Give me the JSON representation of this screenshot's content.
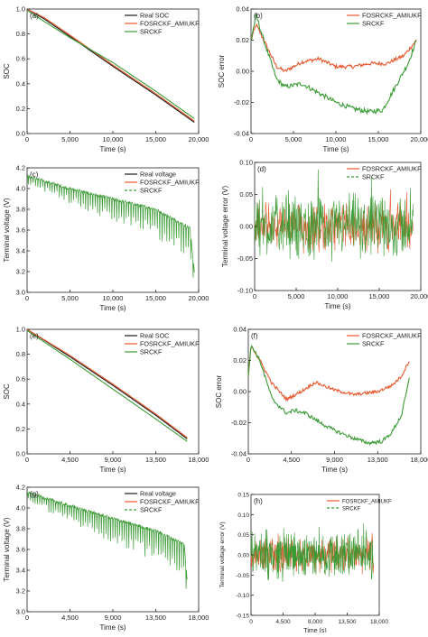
{
  "figure": {
    "colors": {
      "real": "#1a1a1a",
      "fos": "#e8552a",
      "srckf": "#3a9a34",
      "axis": "#222222"
    }
  },
  "chart_data": [
    {
      "id": "a",
      "type": "line",
      "panel_label": "(a)",
      "xlabel": "Time (s)",
      "ylabel": "SOC",
      "xlim": [
        0,
        20000
      ],
      "ylim": [
        0,
        1.0
      ],
      "xticks": [
        0,
        5000,
        10000,
        15000,
        20000
      ],
      "xtick_labels": [
        "0",
        "5,000",
        "10,000",
        "15,000",
        "20,000"
      ],
      "yticks": [
        0.0,
        0.2,
        0.4,
        0.6,
        0.8,
        1.0
      ],
      "ytick_labels": [
        "0.0",
        "0.2",
        "0.4",
        "0.6",
        "0.8",
        "1.0"
      ],
      "legend_position": "top-right",
      "series": [
        {
          "name": "Real SOC",
          "color": "#1a1a1a",
          "style": "solid",
          "x": [
            0,
            2000,
            5000,
            10000,
            15000,
            19500
          ],
          "y": [
            1.0,
            0.92,
            0.78,
            0.54,
            0.31,
            0.09
          ]
        },
        {
          "name": "FOSRCKF_AMIUKF",
          "color": "#e8552a",
          "style": "solid",
          "x": [
            0,
            2000,
            5000,
            10000,
            15000,
            19500
          ],
          "y": [
            1.0,
            0.93,
            0.79,
            0.55,
            0.32,
            0.1
          ]
        },
        {
          "name": "SRCKF",
          "color": "#3a9a34",
          "style": "solid",
          "x": [
            0,
            2000,
            5000,
            10000,
            15000,
            19500
          ],
          "y": [
            0.99,
            0.9,
            0.77,
            0.57,
            0.34,
            0.12
          ]
        }
      ]
    },
    {
      "id": "b",
      "type": "line",
      "panel_label": "(b)",
      "xlabel": "Time (s)",
      "ylabel": "SOC error",
      "xlim": [
        0,
        20000
      ],
      "ylim": [
        -0.04,
        0.04
      ],
      "xticks": [
        0,
        5000,
        10000,
        15000,
        20000
      ],
      "xtick_labels": [
        "0",
        "5,000",
        "10,000",
        "15,000",
        "20,000"
      ],
      "yticks": [
        -0.04,
        -0.02,
        0.0,
        0.02,
        0.04
      ],
      "ytick_labels": [
        "-0.04",
        "-0.02",
        "0.00",
        "0.02",
        "0.04"
      ],
      "legend_position": "top-right",
      "series": [
        {
          "name": "FOSRCKF_AMIUKF",
          "color": "#e8552a",
          "style": "solid",
          "noise": 0.0012,
          "x": [
            0,
            600,
            1500,
            3000,
            4000,
            6000,
            8000,
            10000,
            12000,
            14000,
            16000,
            18000,
            19500
          ],
          "y": [
            0.02,
            0.03,
            0.02,
            0.003,
            0.0,
            0.006,
            0.008,
            0.003,
            0.003,
            0.005,
            0.005,
            0.01,
            0.02
          ]
        },
        {
          "name": "SRCKF",
          "color": "#3a9a34",
          "style": "solid",
          "noise": 0.0015,
          "x": [
            0,
            600,
            1500,
            3000,
            4000,
            6000,
            8000,
            10000,
            12000,
            14000,
            15500,
            17000,
            18500,
            19500
          ],
          "y": [
            0.02,
            0.036,
            0.02,
            -0.005,
            -0.01,
            -0.008,
            -0.014,
            -0.02,
            -0.024,
            -0.026,
            -0.025,
            -0.01,
            0.005,
            0.02
          ]
        }
      ]
    },
    {
      "id": "c",
      "type": "line",
      "panel_label": "(c)",
      "xlabel": "Time (s)",
      "ylabel": "Terminal voltage (V)",
      "xlim": [
        0,
        20000
      ],
      "ylim": [
        3.0,
        4.2
      ],
      "xticks": [
        0,
        5000,
        10000,
        15000,
        20000
      ],
      "xtick_labels": [
        "0",
        "5,000",
        "10,000",
        "15,000",
        "20,000"
      ],
      "yticks": [
        3.0,
        3.2,
        3.4,
        3.6,
        3.8,
        4.0,
        4.2
      ],
      "ytick_labels": [
        "3.0",
        "3.2",
        "3.4",
        "3.6",
        "3.8",
        "4.0",
        "4.2"
      ],
      "legend_position": "top-right",
      "series": [
        {
          "name": "Real voltage",
          "color": "#1a1a1a",
          "style": "solid"
        },
        {
          "name": "FOSRCKF_AMIUKF",
          "color": "#e8552a",
          "style": "solid"
        },
        {
          "name": "SRCKF",
          "color": "#3a9a34",
          "style": "dashed",
          "x": [
            0,
            5000,
            10000,
            15000,
            19000,
            19500
          ],
          "y": [
            4.12,
            4.0,
            3.9,
            3.8,
            3.62,
            3.2
          ],
          "drop": 0.28
        }
      ]
    },
    {
      "id": "d",
      "type": "line",
      "panel_label": "(d)",
      "xlabel": "Time (s)",
      "ylabel": "Terminal voltage error (V)",
      "xlim": [
        0,
        20000
      ],
      "ylim": [
        -0.1,
        0.1
      ],
      "xticks": [
        0,
        5000,
        10000,
        15000,
        20000
      ],
      "xtick_labels": [
        "0",
        "5,000",
        "10,000",
        "15,000",
        "20,000"
      ],
      "yticks": [
        -0.1,
        -0.05,
        0.0,
        0.05,
        0.1
      ],
      "ytick_labels": [
        "-0.10",
        "-0.05",
        "0.00",
        "0.05",
        "0.10"
      ],
      "legend_position": "top-right",
      "series": [
        {
          "name": "FOSRCKF_AMIUKF",
          "color": "#e8552a",
          "style": "solid",
          "amp": 0.045
        },
        {
          "name": "SRCKF",
          "color": "#3a9a34",
          "style": "dashed",
          "amp": 0.06
        }
      ]
    },
    {
      "id": "e",
      "type": "line",
      "panel_label": "(e)",
      "xlabel": "Time (s)",
      "ylabel": "SOC",
      "xlim": [
        0,
        18000
      ],
      "ylim": [
        0,
        1.0
      ],
      "xticks": [
        0,
        4500,
        9000,
        13500,
        18000
      ],
      "xtick_labels": [
        "0",
        "4,500",
        "9,000",
        "13,500",
        "18,000"
      ],
      "yticks": [
        0.0,
        0.2,
        0.4,
        0.6,
        0.8,
        1.0
      ],
      "ytick_labels": [
        "0.0",
        "0.2",
        "0.4",
        "0.6",
        "0.8",
        "1.0"
      ],
      "legend_position": "top-right",
      "series": [
        {
          "name": "Real SOC",
          "color": "#1a1a1a",
          "style": "solid",
          "x": [
            0,
            4500,
            9000,
            13500,
            16800
          ],
          "y": [
            1.0,
            0.78,
            0.55,
            0.31,
            0.12
          ]
        },
        {
          "name": "FOSRCKF_AMIUKF",
          "color": "#e8552a",
          "style": "solid",
          "x": [
            0,
            4500,
            9000,
            13500,
            16800
          ],
          "y": [
            1.0,
            0.79,
            0.56,
            0.32,
            0.13
          ]
        },
        {
          "name": "SRCKF",
          "color": "#3a9a34",
          "style": "solid",
          "x": [
            0,
            4500,
            9000,
            13500,
            16800
          ],
          "y": [
            0.99,
            0.76,
            0.52,
            0.28,
            0.1
          ]
        }
      ]
    },
    {
      "id": "f",
      "type": "line",
      "panel_label": "(f)",
      "xlabel": "Time (s)",
      "ylabel": "SOC error",
      "xlim": [
        0,
        18000
      ],
      "ylim": [
        -0.04,
        0.04
      ],
      "xticks": [
        0,
        4500,
        9000,
        13500,
        18000
      ],
      "xtick_labels": [
        "0",
        "4,500",
        "9,000",
        "13,500",
        "18,000"
      ],
      "yticks": [
        -0.04,
        -0.02,
        0.0,
        0.02,
        0.04
      ],
      "ytick_labels": [
        "-0.04",
        "-0.02",
        "0.00",
        "0.02",
        "0.04"
      ],
      "legend_position": "top-right",
      "series": [
        {
          "name": "FOSRCKF_AMIUKF",
          "color": "#e8552a",
          "style": "solid",
          "noise": 0.001,
          "x": [
            0,
            300,
            1200,
            2500,
            4000,
            5500,
            7000,
            9000,
            11000,
            13500,
            15000,
            16000,
            16800
          ],
          "y": [
            0.01,
            0.03,
            0.02,
            0.005,
            -0.005,
            0.0,
            0.006,
            0.001,
            -0.002,
            0.0,
            0.004,
            0.01,
            0.02
          ]
        },
        {
          "name": "SRCKF",
          "color": "#3a9a34",
          "style": "solid",
          "noise": 0.0012,
          "x": [
            0,
            300,
            1200,
            2500,
            4000,
            4800,
            6000,
            7500,
            9000,
            11000,
            12500,
            14000,
            15000,
            16000,
            16800
          ],
          "y": [
            0.01,
            0.03,
            0.02,
            -0.005,
            -0.014,
            -0.012,
            -0.014,
            -0.02,
            -0.025,
            -0.03,
            -0.033,
            -0.032,
            -0.026,
            -0.015,
            0.008
          ]
        }
      ]
    },
    {
      "id": "g",
      "type": "line",
      "panel_label": "(g)",
      "xlabel": "Time (s)",
      "ylabel": "Terminal voltage (V)",
      "xlim": [
        0,
        18000
      ],
      "ylim": [
        3.0,
        4.2
      ],
      "xticks": [
        0,
        4500,
        9000,
        13500,
        18000
      ],
      "xtick_labels": [
        "0",
        "4,500",
        "9,000",
        "13,500",
        "18,000"
      ],
      "yticks": [
        3.0,
        3.2,
        3.4,
        3.6,
        3.8,
        4.0,
        4.2
      ],
      "ytick_labels": [
        "3.0",
        "3.2",
        "3.4",
        "3.6",
        "3.8",
        "4.0",
        "4.2"
      ],
      "legend_position": "top-right",
      "series": [
        {
          "name": "Real voltage",
          "color": "#1a1a1a",
          "style": "solid"
        },
        {
          "name": "FOSRCKF_AMIUKF",
          "color": "#e8552a",
          "style": "solid"
        },
        {
          "name": "SRCKF",
          "color": "#3a9a34",
          "style": "dashed",
          "x": [
            0,
            4500,
            9000,
            13500,
            16500,
            16800
          ],
          "y": [
            4.15,
            4.02,
            3.9,
            3.78,
            3.65,
            3.3
          ],
          "drop": 0.3
        }
      ]
    },
    {
      "id": "h",
      "type": "line",
      "panel_label": "(h)",
      "xlabel": "Time (s)",
      "ylabel": "Terminal voltage error (V)",
      "xlim": [
        0,
        18000
      ],
      "ylim": [
        -0.15,
        0.15
      ],
      "xticks": [
        0,
        4500,
        9000,
        13500,
        18000
      ],
      "xtick_labels": [
        "0",
        "4,500",
        "9,000",
        "13,500",
        "18,000"
      ],
      "yticks": [
        -0.15,
        -0.1,
        -0.05,
        0.0,
        0.05,
        0.1,
        0.15
      ],
      "ytick_labels": [
        "-0.15",
        "-0.10",
        "-0.05",
        "0.00",
        "0.05",
        "0.10",
        "0.15"
      ],
      "legend_position": "top-right",
      "series": [
        {
          "name": "FOSRCKF_AMIUKF",
          "color": "#e8552a",
          "style": "solid",
          "amp": 0.05
        },
        {
          "name": "SRCKF",
          "color": "#3a9a34",
          "style": "dashed",
          "amp": 0.07
        }
      ]
    }
  ]
}
